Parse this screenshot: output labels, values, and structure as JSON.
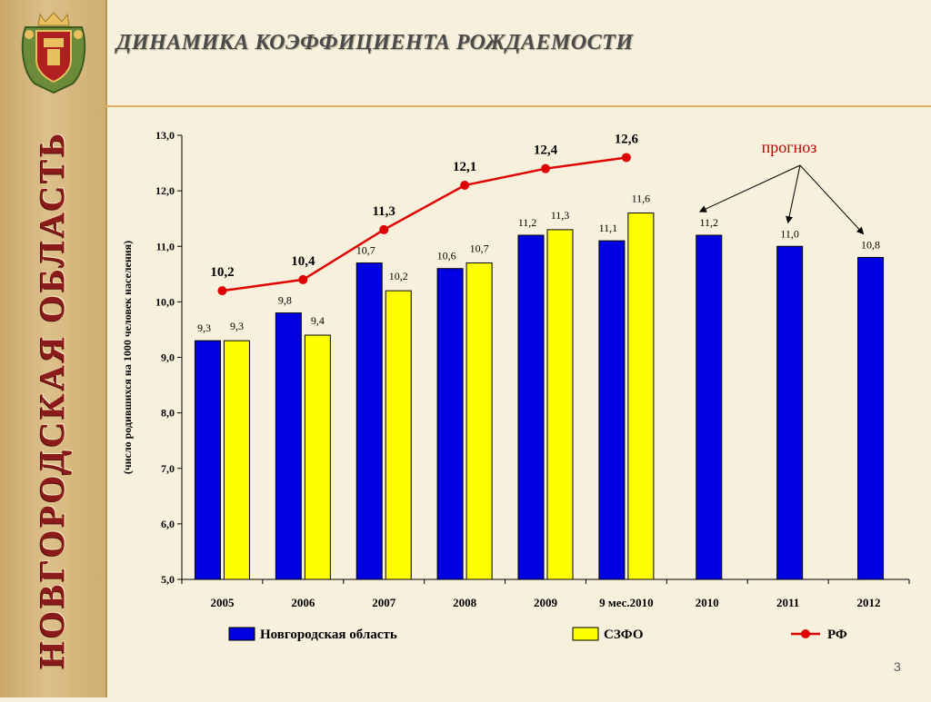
{
  "sidebar": {
    "vertical_title": "НОВГОРОДСКАЯ ОБЛАСТЬ",
    "emblem_icon": "coat-of-arms-icon"
  },
  "slide": {
    "title": "ДИНАМИКА КОЭФФИЦИЕНТА РОЖДАЕМОСТИ",
    "page_number": "3"
  },
  "colors": {
    "novgorod": "#0000e0",
    "szfo": "#ffff00",
    "rf": "#e00000",
    "title": "#4a4a4a",
    "sidebar_text": "#8b1a1a"
  },
  "chart_data": {
    "type": "bar",
    "title": "",
    "ylabel": "(число родившихся на 1000 человек населения)",
    "xlabel": "",
    "ylim": [
      5.0,
      13.0
    ],
    "ytick_step": 1.0,
    "categories": [
      "2005",
      "2006",
      "2007",
      "2008",
      "2009",
      "9 мес.2010",
      "2010",
      "2011",
      "2012"
    ],
    "series": [
      {
        "name": "Новгородская область",
        "kind": "bar",
        "values": [
          9.3,
          9.8,
          10.7,
          10.6,
          11.2,
          11.1,
          11.2,
          11.0,
          10.8
        ],
        "labels": [
          "9,3",
          "9,8",
          "10,7",
          "10,6",
          "11,2",
          "11,1",
          "11,2",
          "11,0",
          "10,8"
        ]
      },
      {
        "name": "СЗФО",
        "kind": "bar",
        "values": [
          9.3,
          9.4,
          10.2,
          10.7,
          11.3,
          11.6,
          null,
          null,
          null
        ],
        "labels": [
          "9,3",
          "9,4",
          "10,2",
          "10,7",
          "11,3",
          "11,6",
          "",
          "",
          ""
        ]
      },
      {
        "name": "РФ",
        "kind": "line",
        "values": [
          10.2,
          10.4,
          11.3,
          12.1,
          12.4,
          12.6,
          null,
          null,
          null
        ],
        "labels": [
          "10,2",
          "10,4",
          "11,3",
          "12,1",
          "12,4",
          "12,6",
          "",
          "",
          ""
        ]
      }
    ],
    "annotation": {
      "text": "прогноз",
      "targets": [
        "2010",
        "2011",
        "2012"
      ]
    },
    "legend_position": "bottom",
    "grid": false
  }
}
